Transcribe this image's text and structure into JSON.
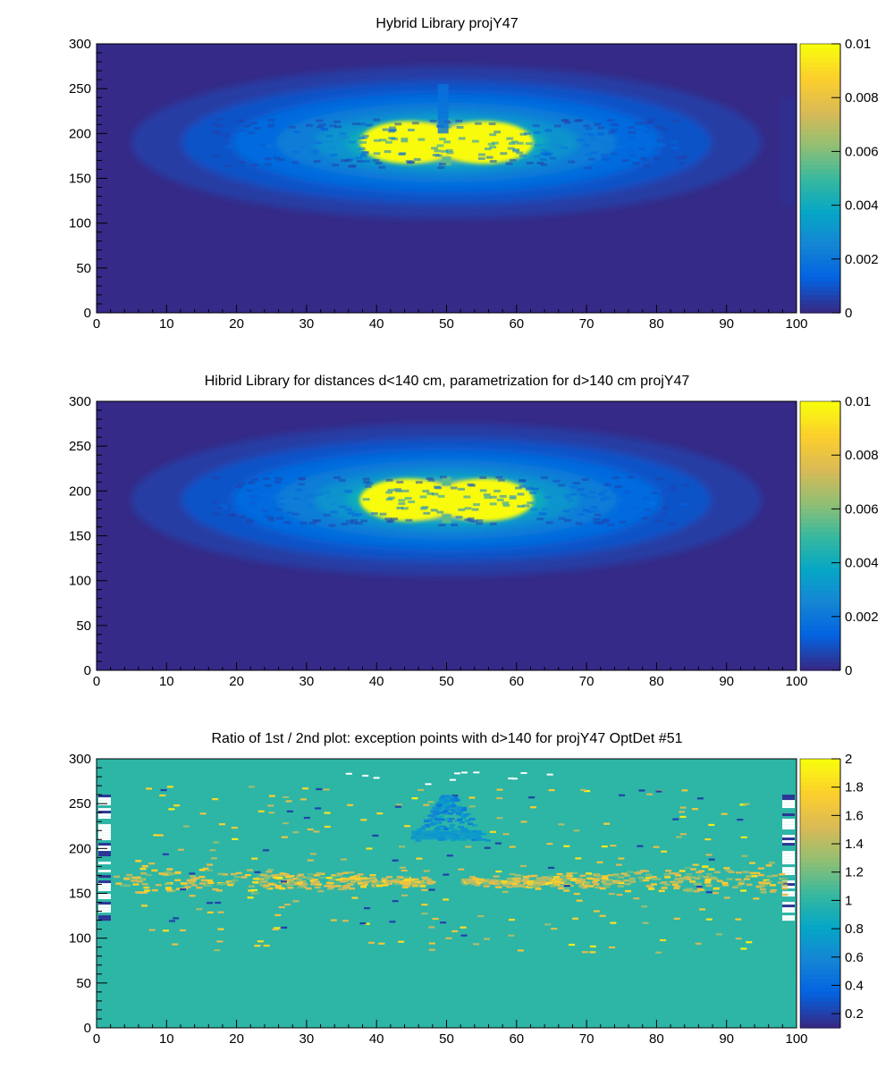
{
  "chart_data": [
    {
      "type": "heatmap",
      "title": "Hybrid Library projY47",
      "xlim": [
        0,
        100
      ],
      "ylim": [
        0,
        300
      ],
      "x_ticks": [
        "0",
        "10",
        "20",
        "30",
        "40",
        "50",
        "60",
        "70",
        "80",
        "90",
        "100"
      ],
      "y_ticks": [
        "0",
        "50",
        "100",
        "150",
        "200",
        "250",
        "300"
      ],
      "colorbar": {
        "range": [
          0,
          0.01
        ],
        "ticks": [
          "0",
          "0.002",
          "0.004",
          "0.006",
          "0.008",
          "0.01"
        ]
      },
      "features": {
        "core_center": [
          50,
          190
        ],
        "core_value": 0.01,
        "halo_extent_x": [
          5,
          95
        ],
        "halo_extent_y": [
          100,
          270
        ],
        "central_notch_x": 50,
        "vertical_stripe_at_x": 49,
        "vertical_stripe_y": [
          200,
          255
        ]
      }
    },
    {
      "type": "heatmap",
      "title": "Hibrid Library for distances d<140 cm, parametrization for d>140 cm projY47",
      "xlim": [
        0,
        100
      ],
      "ylim": [
        0,
        300
      ],
      "x_ticks": [
        "0",
        "10",
        "20",
        "30",
        "40",
        "50",
        "60",
        "70",
        "80",
        "90",
        "100"
      ],
      "y_ticks": [
        "0",
        "50",
        "100",
        "150",
        "200",
        "250",
        "300"
      ],
      "colorbar": {
        "range": [
          0,
          0.01
        ],
        "ticks": [
          "0",
          "0.002",
          "0.004",
          "0.006",
          "0.008",
          "0.01"
        ]
      },
      "features": {
        "core_center": [
          50,
          190
        ],
        "core_value": 0.01,
        "halo_extent_x": [
          5,
          95
        ],
        "halo_extent_y": [
          100,
          270
        ],
        "central_notch_x": 50
      }
    },
    {
      "type": "heatmap",
      "title": "Ratio of 1st / 2nd plot: exception points with d>140 for projY47 OptDet #51",
      "xlim": [
        0,
        100
      ],
      "ylim": [
        0,
        300
      ],
      "x_ticks": [
        "0",
        "10",
        "20",
        "30",
        "40",
        "50",
        "60",
        "70",
        "80",
        "90",
        "100"
      ],
      "y_ticks": [
        "0",
        "50",
        "100",
        "150",
        "200",
        "250",
        "300"
      ],
      "colorbar": {
        "range": [
          0.1,
          2
        ],
        "ticks": [
          "0.2",
          "0.4",
          "0.6",
          "0.8",
          "1",
          "1.2",
          "1.4",
          "1.6",
          "1.8",
          "2"
        ]
      },
      "features": {
        "background_ratio": 1.0,
        "excess_band_y": [
          150,
          180
        ],
        "excess_band_ratio": 1.4,
        "deficit_region_x": [
          45,
          55
        ],
        "deficit_region_y": [
          210,
          260
        ],
        "deficit_ratio": 0.7,
        "white_edge_columns_x": [
          0,
          100
        ],
        "white_edge_y": [
          120,
          260
        ]
      }
    }
  ],
  "colors": {
    "palette_stops": [
      "#352a87",
      "#0363e1",
      "#1485d4",
      "#06a7c6",
      "#38b99e",
      "#92bf73",
      "#d9ba56",
      "#fcce2e",
      "#f9fb0e"
    ],
    "frame": "#000000",
    "background": "#ffffff"
  }
}
